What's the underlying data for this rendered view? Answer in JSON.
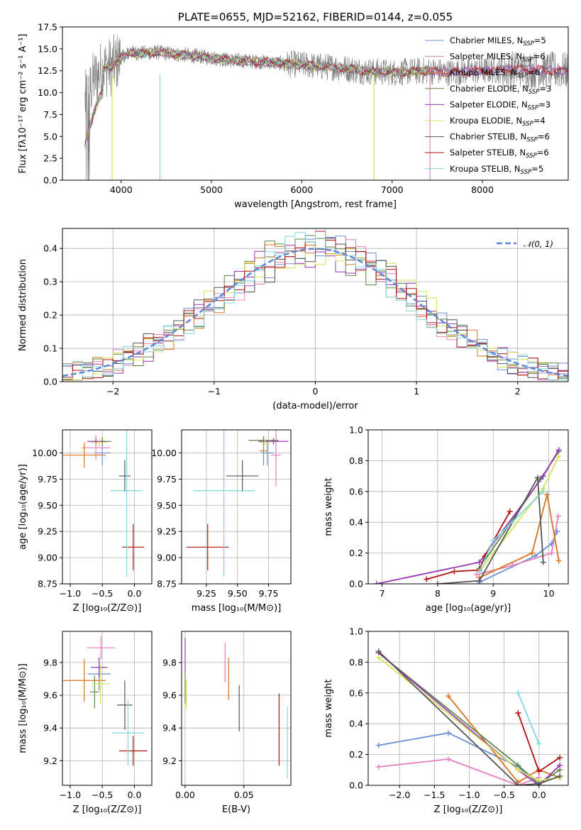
{
  "colors": {
    "Chabrier MILES": "#6a8fd8",
    "Salpeter MILES": "#e57fbd",
    "Kroupa MILES": "#d9731f",
    "Chabrier ELODIE": "#5a8a48",
    "Salpeter ELODIE": "#9a35b5",
    "Kroupa ELODIE": "#d6e35a",
    "Chabrier STELIB": "#555555",
    "Salpeter STELIB": "#b01010",
    "Kroupa STELIB": "#7fd8de"
  },
  "chart_data": [
    {
      "id": "spectrum",
      "type": "line",
      "title": "PLATE=0655, MJD=52162, FIBERID=0144, z=0.055",
      "xlabel": "wavelength [Angstrom, rest frame]",
      "ylabel": "Flux [fλ10⁻¹⁷ erg cm⁻² s⁻¹ A⁻¹]",
      "xlim": [
        3350,
        8950
      ],
      "ylim": [
        0,
        17.5
      ],
      "xticks": [
        "4000",
        "5000",
        "6000",
        "7000",
        "8000"
      ],
      "yticks": [
        "0.0",
        "2.5",
        "5.0",
        "7.5",
        "10.0",
        "12.5",
        "15.0",
        "17.5"
      ],
      "grid": false,
      "legend_position": "right",
      "legend": [
        {
          "model": "Chabrier MILES",
          "nssp": "5"
        },
        {
          "model": "Salpeter MILES",
          "nssp": "6"
        },
        {
          "model": "Kroupa MILES",
          "nssp": "6"
        },
        {
          "model": "Chabrier ELODIE",
          "nssp": "3"
        },
        {
          "model": "Salpeter ELODIE",
          "nssp": "3"
        },
        {
          "model": "Kroupa ELODIE",
          "nssp": "4"
        },
        {
          "model": "Chabrier STELIB",
          "nssp": "6"
        },
        {
          "model": "Salpeter STELIB",
          "nssp": "6"
        },
        {
          "model": "Kroupa STELIB",
          "nssp": "5"
        }
      ],
      "continuum": {
        "x": [
          3600,
          3700,
          3800,
          3900,
          4000,
          4100,
          4200,
          4400,
          4600,
          4800,
          5000,
          5200,
          5400,
          5600,
          5800,
          6000,
          6200,
          6400,
          6600,
          6800,
          7000,
          7200,
          7400,
          7600,
          7800,
          8000,
          8200,
          8400,
          8600,
          8800
        ],
        "y": [
          9.0,
          11.5,
          12.8,
          13.0,
          14.0,
          14.6,
          14.5,
          14.6,
          14.4,
          14.2,
          14.0,
          13.7,
          13.6,
          13.5,
          13.3,
          13.2,
          13.0,
          12.9,
          12.6,
          12.4,
          12.3,
          12.4,
          12.5,
          12.3,
          12.4,
          12.5,
          12.6,
          12.7,
          12.6,
          12.5
        ]
      }
    },
    {
      "id": "residuals",
      "type": "step",
      "xlabel": "(data-model)/error",
      "ylabel": "Normed distribution",
      "xlim": [
        -2.5,
        2.5
      ],
      "ylim": [
        0,
        0.46
      ],
      "xticks": [
        "−2",
        "−1",
        "0",
        "1",
        "2"
      ],
      "yticks": [
        "0.0",
        "0.1",
        "0.2",
        "0.3",
        "0.4"
      ],
      "grid": true,
      "legend_label": "𝒩(0, 1)",
      "legend_position": "top-right",
      "normal": {
        "mean": 0,
        "sigma": 1
      }
    },
    {
      "id": "z-age",
      "type": "errorbar",
      "xlabel": "Z [log₁₀(Z/Z⊙)]",
      "ylabel": "age  [log₁₀(age/yr)]",
      "xlim": [
        -1.12,
        0.27
      ],
      "ylim": [
        8.75,
        10.22
      ],
      "xticks": [
        "−1.0",
        "−0.5",
        "0.0"
      ],
      "yticks": [
        "8.75",
        "9.00",
        "9.25",
        "9.50",
        "9.75",
        "10.00"
      ],
      "grid": true,
      "points": [
        {
          "model": "Chabrier MILES",
          "x": -0.5,
          "xerr": 0.12,
          "y": 10.0,
          "yerr": 0.12
        },
        {
          "model": "Salpeter MILES",
          "x": -0.6,
          "xerr": 0.22,
          "y": 10.05,
          "yerr": 0.12
        },
        {
          "model": "Kroupa MILES",
          "x": -0.78,
          "xerr": 0.33,
          "y": 9.98,
          "yerr": 0.12
        },
        {
          "model": "Chabrier ELODIE",
          "x": -0.5,
          "xerr": 0.14,
          "y": 10.11,
          "yerr": 0.04
        },
        {
          "model": "Salpeter ELODIE",
          "x": -0.6,
          "xerr": 0.13,
          "y": 10.11,
          "yerr": 0.03
        },
        {
          "model": "Kroupa ELODIE",
          "x": -0.55,
          "xerr": 0.12,
          "y": 10.1,
          "yerr": 0.04
        },
        {
          "model": "Chabrier STELIB",
          "x": -0.15,
          "xerr": 0.09,
          "y": 9.78,
          "yerr": 0.15
        },
        {
          "model": "Salpeter STELIB",
          "x": -0.02,
          "xerr": 0.17,
          "y": 9.1,
          "yerr": 0.22
        },
        {
          "model": "Kroupa STELIB",
          "x": -0.12,
          "xerr": 0.25,
          "y": 9.64,
          "yerr": 0.82
        }
      ]
    },
    {
      "id": "mass-age",
      "type": "errorbar",
      "xlabel": "mass [log₁₀(M/M⊙)]",
      "ylabel": "",
      "xlim": [
        9.05,
        9.93
      ],
      "ylim": [
        8.75,
        10.22
      ],
      "xticks": [
        "9.25",
        "9.50",
        "9.75"
      ],
      "yticks": [
        "8.75",
        "9.00",
        "9.25",
        "9.50",
        "9.75",
        "10.00"
      ],
      "grid": true,
      "points": [
        {
          "model": "Chabrier MILES",
          "x": 9.74,
          "xerr": 0.05,
          "y": 10.0,
          "yerr": 0.12
        },
        {
          "model": "Salpeter MILES",
          "x": 9.81,
          "xerr": 0.04,
          "y": 9.98,
          "yerr": 0.3
        },
        {
          "model": "Kroupa MILES",
          "x": 9.71,
          "xerr": 0.03,
          "y": 10.02,
          "yerr": 0.14
        },
        {
          "model": "Chabrier ELODIE",
          "x": 9.71,
          "xerr": 0.12,
          "y": 10.12,
          "yerr": 0.03
        },
        {
          "model": "Salpeter ELODIE",
          "x": 9.79,
          "xerr": 0.12,
          "y": 10.11,
          "yerr": 0.03
        },
        {
          "model": "Kroupa ELODIE",
          "x": 9.72,
          "xerr": 0.04,
          "y": 10.1,
          "yerr": 0.03
        },
        {
          "model": "Chabrier STELIB",
          "x": 9.54,
          "xerr": 0.13,
          "y": 9.78,
          "yerr": 0.15
        },
        {
          "model": "Salpeter STELIB",
          "x": 9.26,
          "xerr": 0.17,
          "y": 9.1,
          "yerr": 0.22
        },
        {
          "model": "Kroupa STELIB",
          "x": 9.39,
          "xerr": 0.25,
          "y": 9.64,
          "yerr": 0.82
        }
      ]
    },
    {
      "id": "age-weight",
      "type": "line",
      "xlabel": "age  [log₁₀(age/yr)]",
      "ylabel": "mass weight",
      "xlim": [
        6.75,
        10.35
      ],
      "ylim": [
        0,
        1.0
      ],
      "xticks": [
        "7",
        "8",
        "9",
        "10"
      ],
      "yticks": [
        "0.0",
        "0.2",
        "0.4",
        "0.6",
        "0.8",
        "1.0"
      ],
      "grid": true,
      "series": [
        {
          "model": "Chabrier MILES",
          "x": [
            8.75,
            9.75,
            10.05,
            10.15
          ],
          "y": [
            0.01,
            0.18,
            0.26,
            0.34
          ]
        },
        {
          "model": "Salpeter MILES",
          "x": [
            8.7,
            9.35,
            10.05,
            10.17
          ],
          "y": [
            0.06,
            0.12,
            0.2,
            0.44
          ]
        },
        {
          "model": "Kroupa MILES",
          "x": [
            8.75,
            9.7,
            9.97,
            10.18
          ],
          "y": [
            0.04,
            0.2,
            0.58,
            0.15
          ]
        },
        {
          "model": "Chabrier ELODIE",
          "x": [
            8.75,
            9.85,
            10.18
          ],
          "y": [
            0.1,
            0.68,
            0.86
          ]
        },
        {
          "model": "Salpeter ELODIE",
          "x": [
            6.9,
            8.75,
            9.9,
            10.18
          ],
          "y": [
            0.0,
            0.14,
            0.7,
            0.87
          ]
        },
        {
          "model": "Kroupa ELODIE",
          "x": [
            8.75,
            9.9,
            10.18
          ],
          "y": [
            0.08,
            0.62,
            0.83
          ]
        },
        {
          "model": "Chabrier STELIB",
          "x": [
            8.0,
            8.75,
            9.8,
            9.9
          ],
          "y": [
            0.0,
            0.02,
            0.69,
            0.14
          ]
        },
        {
          "model": "Salpeter STELIB",
          "x": [
            7.8,
            8.3,
            8.75,
            8.85,
            9.3
          ],
          "y": [
            0.03,
            0.08,
            0.09,
            0.18,
            0.47
          ]
        },
        {
          "model": "Kroupa STELIB",
          "x": [
            8.75,
            9.0,
            9.9
          ],
          "y": [
            0.08,
            0.28,
            0.6
          ]
        }
      ]
    },
    {
      "id": "z-mass",
      "type": "errorbar",
      "xlabel": "Z [log₁₀(Z/Z⊙)]",
      "ylabel": "mass [log₁₀(M/M⊙)]",
      "xlim": [
        -1.12,
        0.27
      ],
      "ylim": [
        9.05,
        9.99
      ],
      "xticks": [
        "−1.0",
        "−0.5",
        "0.0"
      ],
      "yticks": [
        "9.2",
        "9.4",
        "9.6",
        "9.8"
      ],
      "grid": true,
      "points": [
        {
          "model": "Chabrier MILES",
          "x": -0.55,
          "xerr": 0.18,
          "y": 9.73,
          "yerr": 0.1
        },
        {
          "model": "Salpeter MILES",
          "x": -0.52,
          "xerr": 0.22,
          "y": 9.89,
          "yerr": 0.07
        },
        {
          "model": "Kroupa MILES",
          "x": -0.78,
          "xerr": 0.33,
          "y": 9.69,
          "yerr": 0.13
        },
        {
          "model": "Chabrier ELODIE",
          "x": -0.62,
          "xerr": 0.07,
          "y": 9.62,
          "yerr": 0.1
        },
        {
          "model": "Salpeter ELODIE",
          "x": -0.55,
          "xerr": 0.13,
          "y": 9.77,
          "yerr": 0.06
        },
        {
          "model": "Kroupa ELODIE",
          "x": -0.53,
          "xerr": 0.14,
          "y": 9.67,
          "yerr": 0.12
        },
        {
          "model": "Chabrier STELIB",
          "x": -0.15,
          "xerr": 0.12,
          "y": 9.54,
          "yerr": 0.15
        },
        {
          "model": "Salpeter STELIB",
          "x": -0.02,
          "xerr": 0.22,
          "y": 9.26,
          "yerr": 0.09
        },
        {
          "model": "Kroupa STELIB",
          "x": -0.1,
          "xerr": 0.25,
          "y": 9.37,
          "yerr": 0.2
        }
      ]
    },
    {
      "id": "ebv-mass",
      "type": "errorbar",
      "xlabel": "E(B-V)",
      "ylabel": "",
      "xlim": [
        -0.003,
        0.09
      ],
      "ylim": [
        9.05,
        9.99
      ],
      "xticks": [
        "0.00",
        "0.05"
      ],
      "yticks": [
        "9.2",
        "9.4",
        "9.6",
        "9.8"
      ],
      "grid": true,
      "points": [
        {
          "model": "Salpeter ELODIE",
          "x": 0.0,
          "xerr": 0,
          "y": 9.85,
          "yerr": 0.1
        },
        {
          "model": "Chabrier ELODIE",
          "x": 0.0,
          "xerr": 0,
          "y": 9.65,
          "yerr": 0.1
        },
        {
          "model": "Kroupa ELODIE",
          "x": 0.001,
          "xerr": 0,
          "y": 9.61,
          "yerr": 0.09
        },
        {
          "model": "Salpeter MILES",
          "x": 0.034,
          "xerr": 0,
          "y": 9.8,
          "yerr": 0.12
        },
        {
          "model": "Kroupa MILES",
          "x": 0.037,
          "xerr": 0,
          "y": 9.7,
          "yerr": 0.13
        },
        {
          "model": "Chabrier STELIB",
          "x": 0.046,
          "xerr": 0,
          "y": 9.52,
          "yerr": 0.14
        },
        {
          "model": "Salpeter STELIB",
          "x": 0.08,
          "xerr": 0,
          "y": 9.39,
          "yerr": 0.22
        },
        {
          "model": "Kroupa STELIB",
          "x": 0.087,
          "xerr": 0,
          "y": 9.31,
          "yerr": 0.22
        }
      ]
    },
    {
      "id": "z-weight",
      "type": "line",
      "xlabel": "Z [log₁₀(Z/Z⊙)]",
      "ylabel": "mass weight",
      "xlim": [
        -2.45,
        0.42
      ],
      "ylim": [
        0,
        1.0
      ],
      "xticks": [
        "−2.0",
        "−1.5",
        "−1.0",
        "−0.5",
        "0.0"
      ],
      "yticks": [
        "0.0",
        "0.2",
        "0.4",
        "0.6",
        "0.8",
        "1.0"
      ],
      "grid": true,
      "series": [
        {
          "model": "Chabrier MILES",
          "x": [
            -2.3,
            -1.3,
            -0.3,
            0.0
          ],
          "y": [
            0.26,
            0.34,
            0.12,
            0.01
          ]
        },
        {
          "model": "Salpeter MILES",
          "x": [
            -2.3,
            -1.3,
            -0.3,
            0.0
          ],
          "y": [
            0.12,
            0.17,
            0.0,
            0.05
          ]
        },
        {
          "model": "Kroupa MILES",
          "x": [
            -1.3,
            -0.3,
            0.0,
            0.3
          ],
          "y": [
            0.58,
            0.02,
            0.1,
            0.05
          ]
        },
        {
          "model": "Chabrier ELODIE",
          "x": [
            -2.3,
            -0.3,
            0.0,
            0.3
          ],
          "y": [
            0.86,
            0.13,
            0.01,
            0.1
          ]
        },
        {
          "model": "Salpeter ELODIE",
          "x": [
            -2.3,
            -0.3,
            0.0,
            0.3
          ],
          "y": [
            0.86,
            0.1,
            0.0,
            0.13
          ]
        },
        {
          "model": "Kroupa ELODIE",
          "x": [
            -2.3,
            -0.3,
            0.0,
            0.3
          ],
          "y": [
            0.83,
            0.1,
            0.03,
            0.05
          ]
        },
        {
          "model": "Chabrier STELIB",
          "x": [
            -2.3,
            -0.3,
            0.0,
            0.3
          ],
          "y": [
            0.87,
            0.0,
            0.01,
            0.06
          ]
        },
        {
          "model": "Salpeter STELIB",
          "x": [
            -0.3,
            0.0,
            0.3
          ],
          "y": [
            0.47,
            0.09,
            0.18
          ]
        },
        {
          "model": "Kroupa STELIB",
          "x": [
            -0.3,
            0.0
          ],
          "y": [
            0.6,
            0.27
          ]
        }
      ]
    }
  ]
}
